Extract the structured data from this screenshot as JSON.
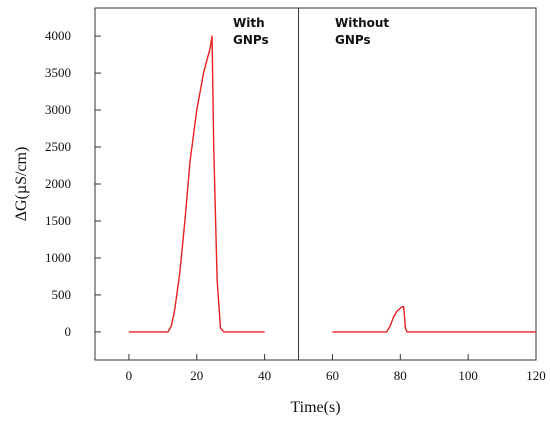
{
  "chart_data": {
    "type": "line",
    "title": "",
    "xlabel": "Time(s)",
    "ylabel": "ΔG(µS/cm)",
    "xlim": [
      -10,
      120
    ],
    "ylim": [
      -380,
      4380
    ],
    "x_ticks": [
      0,
      20,
      40,
      60,
      80,
      100,
      120
    ],
    "y_ticks": [
      0,
      500,
      1000,
      1500,
      2000,
      2500,
      3000,
      3500,
      4000
    ],
    "grid": false,
    "divider_x": 50,
    "line_color": "#e8201e",
    "series": [
      {
        "segment": "with",
        "x": [
          0,
          11.5,
          12.5,
          13.5,
          15,
          16.5,
          18,
          20,
          22,
          24,
          24.5,
          25,
          26,
          27,
          28,
          40
        ],
        "y": [
          0,
          0,
          80,
          300,
          800,
          1500,
          2300,
          3000,
          3500,
          3850,
          4000,
          2500,
          700,
          50,
          0,
          0
        ]
      },
      {
        "segment": "without",
        "x": [
          60,
          76,
          77,
          78,
          79,
          80,
          80.5,
          81,
          81.5,
          82,
          120
        ],
        "y": [
          0,
          0,
          80,
          200,
          280,
          320,
          340,
          340,
          50,
          0,
          0
        ]
      }
    ],
    "annotations": [
      {
        "id": "with",
        "lines": [
          "With",
          "GNPs"
        ]
      },
      {
        "id": "without",
        "lines": [
          "Without",
          "GNPs"
        ]
      }
    ]
  }
}
